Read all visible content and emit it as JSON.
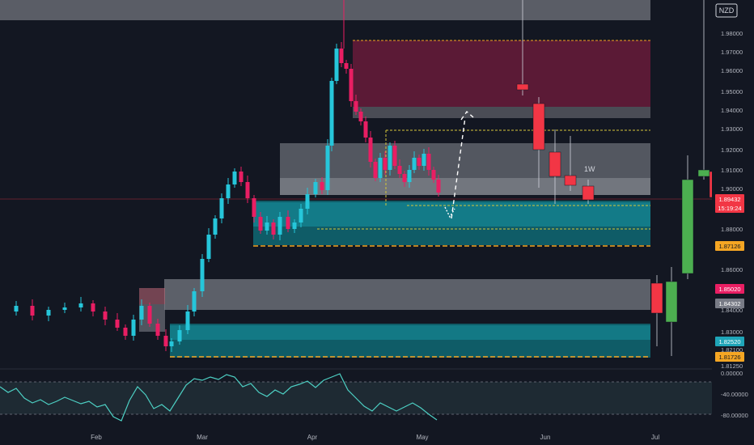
{
  "currency_badge": "NZD",
  "price_axis": {
    "ticks": [
      "1.98000",
      "1.97000",
      "1.96000",
      "1.95000",
      "1.94000",
      "1.93000",
      "1.92000",
      "1.91000",
      "1.90000",
      "1.88000",
      "1.86000",
      "1.84000",
      "1.83000",
      "1.82100",
      "1.81250"
    ],
    "tags": [
      {
        "label": "1.89432",
        "color": "#f23645",
        "text_color": "#ffffff"
      },
      {
        "label": "15:19:24",
        "color": "#f23645",
        "text_color": "#ffffff"
      },
      {
        "label": "1.87126",
        "color": "#f5a623",
        "text_color": "#131722"
      },
      {
        "label": "1.85020",
        "color": "#e91e63",
        "text_color": "#ffffff"
      },
      {
        "label": "1.84302",
        "color": "#787b86",
        "text_color": "#ffffff"
      },
      {
        "label": "1.82520",
        "color": "#1fa5b8",
        "text_color": "#ffffff"
      },
      {
        "label": "1.81726",
        "color": "#f5a623",
        "text_color": "#131722"
      }
    ]
  },
  "oscillator_axis": {
    "ticks": [
      "0.00000",
      "-40.00000",
      "-80.00000"
    ]
  },
  "time_axis": {
    "labels": [
      "Feb",
      "Mar",
      "Apr",
      "May",
      "Jun",
      "Jul"
    ]
  },
  "annotations": {
    "weekly_label": "1W"
  },
  "colors": {
    "background": "#131722",
    "bull_daily": "#26c6da",
    "bear_daily": "#e91e63",
    "bull_weekly": "#4caf50",
    "bear_weekly": "#f23645",
    "zone_gray": "#787b86",
    "zone_teal": "#0a8a96",
    "zone_maroon": "#6a1b3a",
    "dashed_orange": "#f5a623",
    "dashed_yellow": "#d4c63a",
    "oscillator_line": "#4dd0c4"
  },
  "chart_data": {
    "type": "candlestick",
    "symbol_currency": "NZD",
    "panes": [
      "price",
      "oscillator"
    ],
    "last_price": 1.89432,
    "countdown": "15:19:24",
    "oscillator_range": [
      -80,
      0
    ]
  }
}
